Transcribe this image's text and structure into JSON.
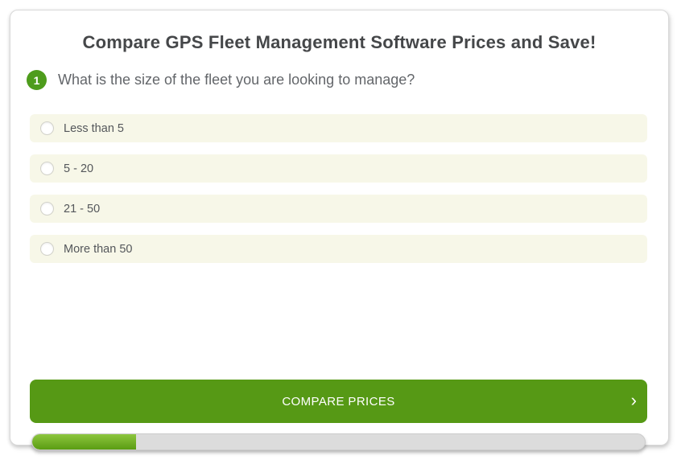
{
  "header": {
    "title": "Compare GPS Fleet Management Software Prices and Save!"
  },
  "question": {
    "number": "1",
    "text": "What is the size of the fleet you are looking to manage?",
    "options": [
      {
        "label": "Less than 5",
        "selected": false
      },
      {
        "label": "5 - 20",
        "selected": false
      },
      {
        "label": "21 - 50",
        "selected": false
      },
      {
        "label": "More than 50",
        "selected": false
      }
    ]
  },
  "cta": {
    "label": "COMPARE PRICES",
    "chevron_icon": "›"
  },
  "progress": {
    "percent": 17
  },
  "colors": {
    "button_green": "#569915",
    "badge_green": "#4e9c1c",
    "progress_fill_top": "#8dc63f",
    "progress_fill_bottom": "#5a9c12",
    "option_background": "#f7f7e8",
    "progress_track": "#dcdcdc"
  }
}
